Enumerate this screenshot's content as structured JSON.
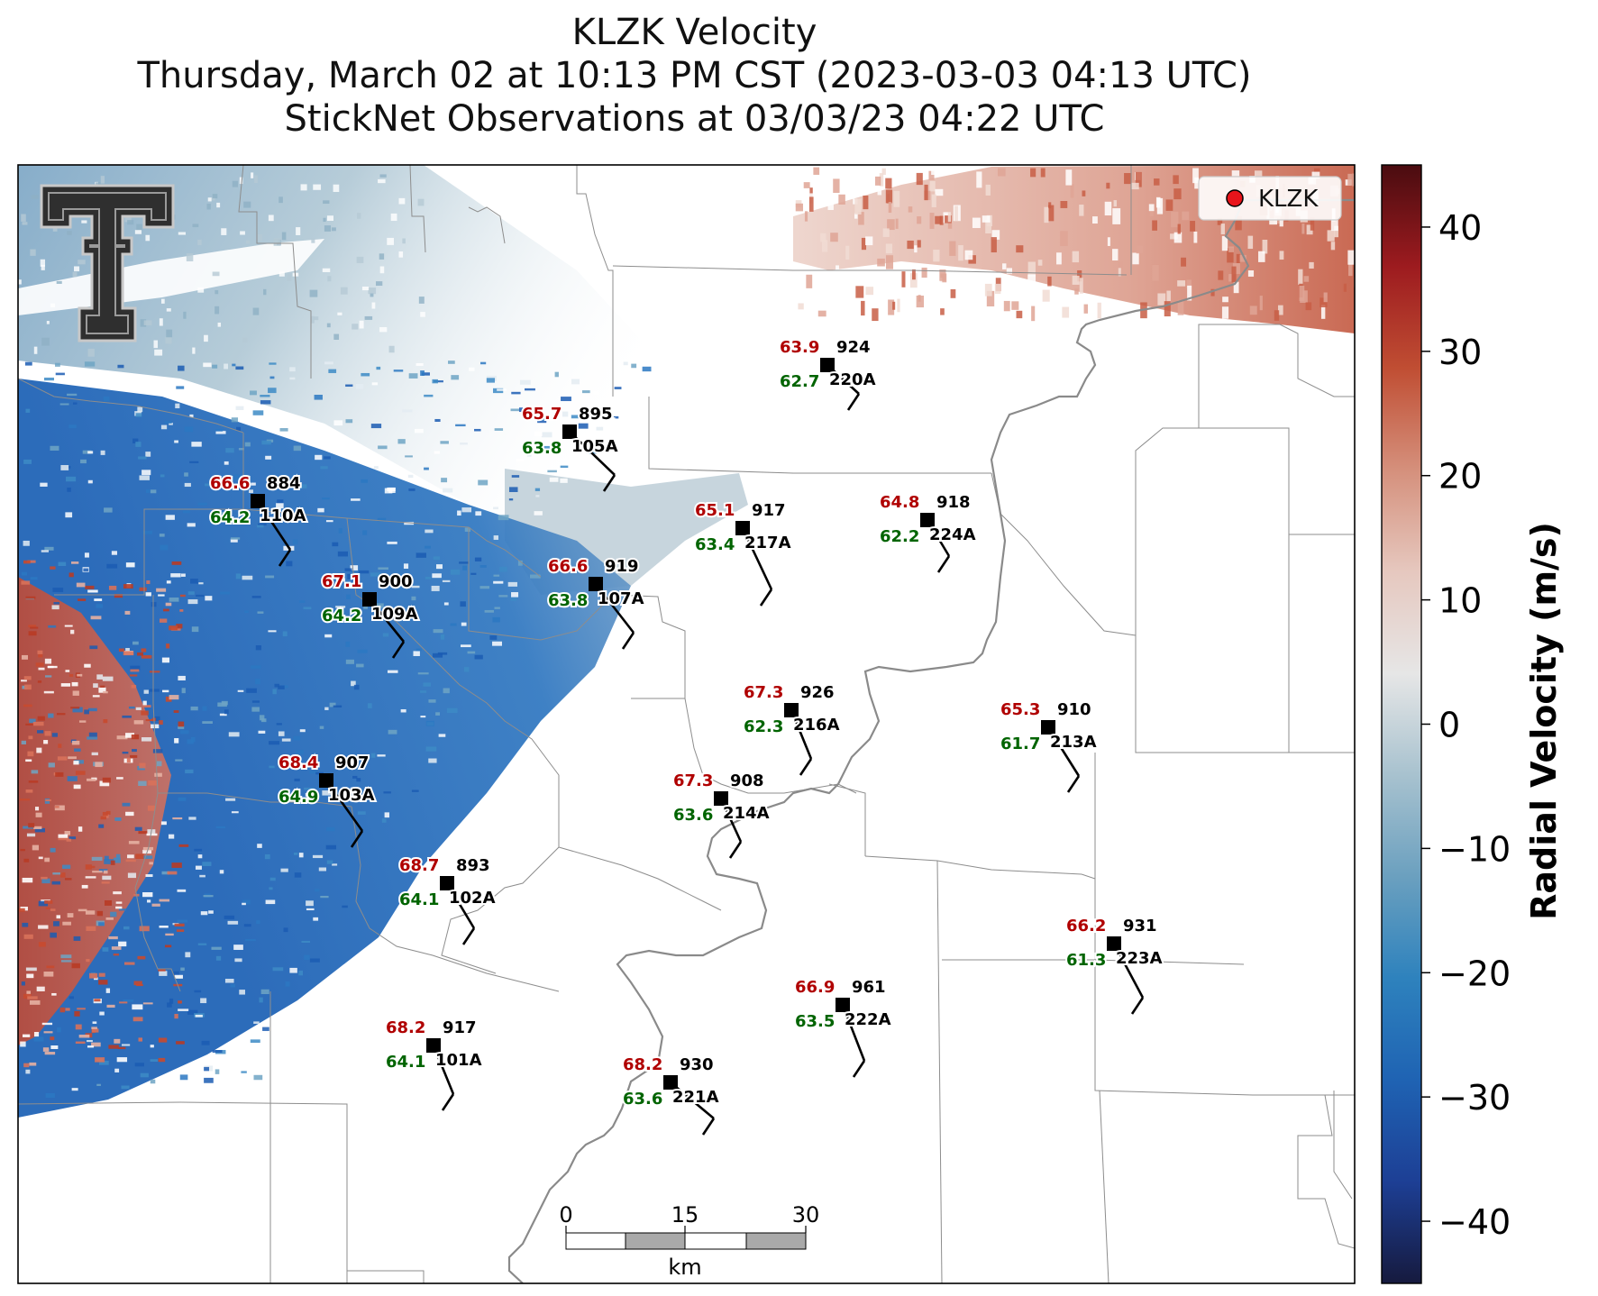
{
  "title": {
    "line1": "KLZK Velocity",
    "line2": "Thursday, March 02 at 10:13 PM CST (2023-03-03 04:13 UTC)",
    "line3": "StickNet Observations at 03/03/23 04:22 UTC"
  },
  "legend": {
    "label": "KLZK",
    "marker_color": "#e8141b"
  },
  "logo": {
    "text": "TT",
    "name": "texas-tech-double-t-logo"
  },
  "colorbar": {
    "label": "Radial Velocity (m/s)",
    "ticks": [
      "40",
      "30",
      "20",
      "10",
      "0",
      "−10",
      "−20",
      "−30",
      "−40"
    ],
    "tick_values": [
      40,
      30,
      20,
      10,
      0,
      -10,
      -20,
      -30,
      -40
    ],
    "range": [
      -45,
      45
    ],
    "colors": [
      "#161a3e",
      "#1d3f95",
      "#1f63b3",
      "#2e82bd",
      "#6ba0bf",
      "#a8c2cf",
      "#e6e6e6",
      "#e6c8bf",
      "#d5907c",
      "#c04e33",
      "#9d1b1f",
      "#4a0c10"
    ]
  },
  "scale_bar": {
    "ticks": [
      "0",
      "15",
      "30"
    ],
    "unit": "km"
  },
  "colors": {
    "temperature": "#b00000",
    "dewpoint": "#006400",
    "station": "#000000"
  },
  "stations": [
    {
      "temp": "63.9",
      "pressure": "924",
      "dew": "62.7",
      "id": "220A"
    },
    {
      "temp": "65.7",
      "pressure": "895",
      "dew": "63.8",
      "id": "105A"
    },
    {
      "temp": "66.6",
      "pressure": "884",
      "dew": "64.2",
      "id": "110A"
    },
    {
      "temp": "65.1",
      "pressure": "917",
      "dew": "63.4",
      "id": "217A"
    },
    {
      "temp": "64.8",
      "pressure": "918",
      "dew": "62.2",
      "id": "224A"
    },
    {
      "temp": "66.6",
      "pressure": "919",
      "dew": "63.8",
      "id": "107A"
    },
    {
      "temp": "67.1",
      "pressure": "900",
      "dew": "64.2",
      "id": "109A"
    },
    {
      "temp": "67.3",
      "pressure": "926",
      "dew": "62.3",
      "id": "216A"
    },
    {
      "temp": "65.3",
      "pressure": "910",
      "dew": "61.7",
      "id": "213A"
    },
    {
      "temp": "68.4",
      "pressure": "907",
      "dew": "64.9",
      "id": "103A"
    },
    {
      "temp": "67.3",
      "pressure": "908",
      "dew": "63.6",
      "id": "214A"
    },
    {
      "temp": "68.7",
      "pressure": "893",
      "dew": "64.1",
      "id": "102A"
    },
    {
      "temp": "66.2",
      "pressure": "931",
      "dew": "61.3",
      "id": "223A"
    },
    {
      "temp": "66.9",
      "pressure": "961",
      "dew": "63.5",
      "id": "222A"
    },
    {
      "temp": "68.2",
      "pressure": "917",
      "dew": "64.1",
      "id": "101A"
    },
    {
      "temp": "68.2",
      "pressure": "930",
      "dew": "63.6",
      "id": "221A"
    }
  ]
}
